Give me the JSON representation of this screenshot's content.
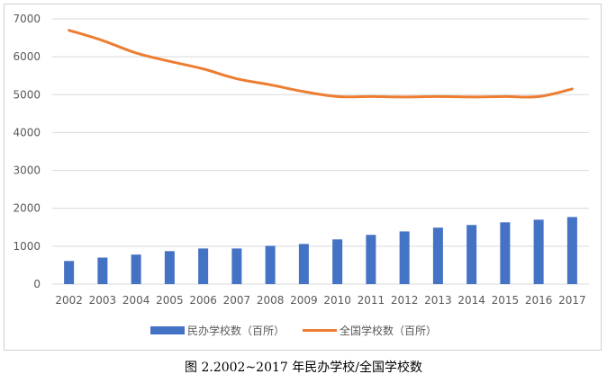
{
  "caption": "图 2.2002~2017 年民办学校/全国学校数",
  "chart_data": {
    "type": "bar",
    "title": "",
    "xlabel": "",
    "ylabel": "",
    "categories": [
      "2002",
      "2003",
      "2004",
      "2005",
      "2006",
      "2007",
      "2008",
      "2009",
      "2010",
      "2011",
      "2012",
      "2013",
      "2014",
      "2015",
      "2016",
      "2017"
    ],
    "ylim": [
      0,
      7000
    ],
    "yticks": [
      0,
      1000,
      2000,
      3000,
      4000,
      5000,
      6000,
      7000
    ],
    "grid": true,
    "legend_position": "bottom",
    "series": [
      {
        "name": "民办学校数（百所）",
        "type": "bar",
        "color": "#4472C4",
        "values": [
          610,
          700,
          780,
          870,
          940,
          940,
          1010,
          1060,
          1180,
          1300,
          1390,
          1490,
          1560,
          1630,
          1700,
          1770
        ]
      },
      {
        "name": "全国学校数（百所）",
        "type": "line",
        "color": "#ED7D31",
        "values": [
          6700,
          6430,
          6100,
          5880,
          5680,
          5420,
          5260,
          5080,
          4950,
          4950,
          4940,
          4950,
          4940,
          4950,
          4950,
          5150
        ]
      }
    ]
  }
}
